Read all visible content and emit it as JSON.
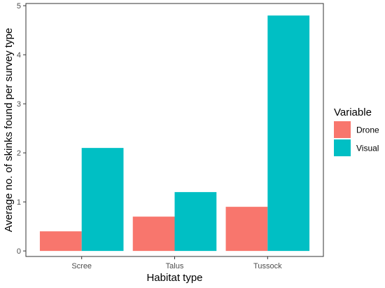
{
  "chart_data": {
    "type": "bar",
    "title": "",
    "xlabel": "Habitat type",
    "ylabel": "Average no. of skinks found per survey type",
    "categories": [
      "Scree",
      "Talus",
      "Tussock"
    ],
    "series": [
      {
        "name": "Drone",
        "values": [
          0.4,
          0.7,
          0.9
        ],
        "color": "#F8766D"
      },
      {
        "name": "Visual",
        "values": [
          2.1,
          1.2,
          4.8
        ],
        "color": "#00BFC4"
      }
    ],
    "ylim": [
      0,
      5
    ],
    "yticks": [
      0,
      1,
      2,
      3,
      4,
      5
    ],
    "grid": false,
    "legend": {
      "title": "Variable",
      "placement": "right"
    }
  }
}
